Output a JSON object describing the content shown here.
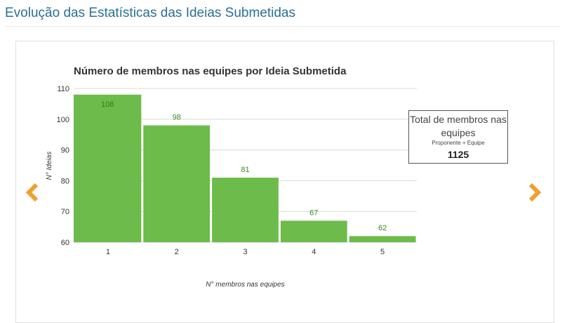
{
  "page": {
    "section_title": "Evolução das Estatísticas das Ideias Submetidas"
  },
  "nav": {
    "prev_icon": "chevron-left-icon",
    "next_icon": "chevron-right-icon",
    "arrow_color": "#f0a030"
  },
  "summary": {
    "title": "Total de membros nas equipes",
    "subtitle": "Proponente + Equipe",
    "value": "1125"
  },
  "colors": {
    "bar": "#6dbb4a",
    "bar_label": "#3b8a22",
    "first_bar_label": "#2f7a1a",
    "title_link": "#2a6f97"
  },
  "chart_data": {
    "type": "bar",
    "title": "Número de membros nas equipes por Ideia Submetida",
    "xlabel": "N° membros nas equipes",
    "ylabel": "N° Ideias",
    "categories": [
      "1",
      "2",
      "3",
      "4",
      "5"
    ],
    "values": [
      108,
      98,
      81,
      67,
      62
    ],
    "ylim": [
      60,
      110
    ],
    "yticks": [
      60,
      70,
      80,
      90,
      100,
      110
    ],
    "grid": true,
    "legend": "none"
  }
}
